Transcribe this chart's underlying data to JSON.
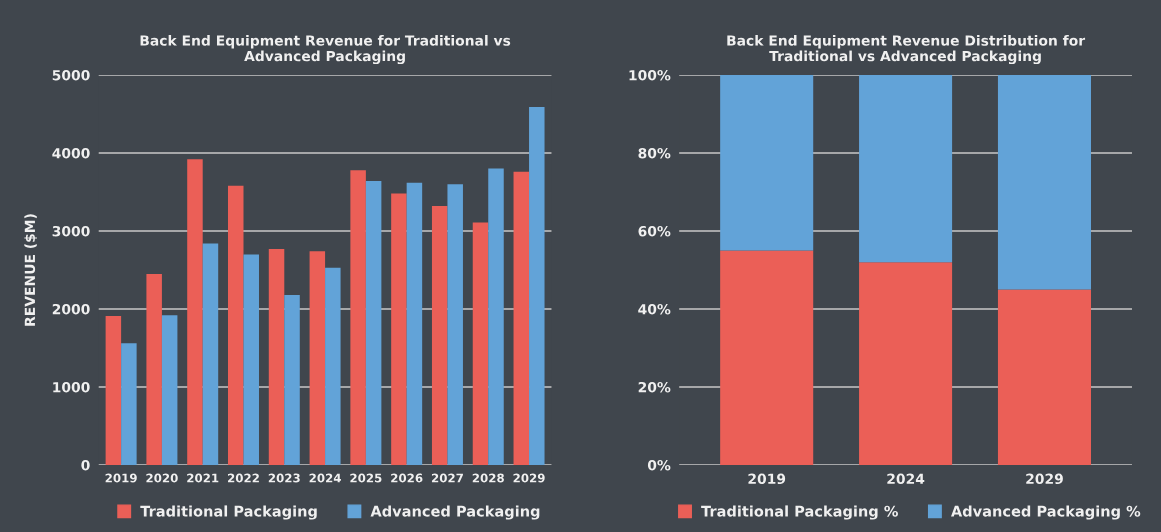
{
  "chart_data": [
    {
      "type": "bar",
      "title": "Back End Equipment Revenue for Traditional vs\nAdvanced Packaging",
      "ylabel": "REVENUE ($M)",
      "categories": [
        "2019",
        "2020",
        "2021",
        "2022",
        "2023",
        "2024",
        "2025",
        "2026",
        "2027",
        "2028",
        "2029"
      ],
      "series": [
        {
          "name": "Traditional Packaging",
          "color": "#eb5f57",
          "values": [
            1910,
            2450,
            3920,
            3580,
            2770,
            2740,
            3780,
            3480,
            3320,
            3110,
            3760
          ]
        },
        {
          "name": "Advanced Packaging",
          "color": "#62a3d8",
          "values": [
            1560,
            1920,
            2840,
            2700,
            2180,
            2530,
            3640,
            3620,
            3600,
            3800,
            4590
          ]
        }
      ],
      "ylim": [
        0,
        5000
      ],
      "yticks": [
        0,
        1000,
        2000,
        3000,
        4000,
        5000
      ],
      "grid": "y",
      "legend": "bottom",
      "marker": "square"
    },
    {
      "type": "bar",
      "title": "Back End Equipment Revenue Distribution for\nTraditional vs Advanced Packaging",
      "stacked": true,
      "categories": [
        "2019",
        "2024",
        "2029"
      ],
      "series": [
        {
          "name": "Traditional Packaging %",
          "color": "#eb5f57",
          "values": [
            55,
            52,
            45
          ]
        },
        {
          "name": "Advanced Packaging %",
          "color": "#62a3d8",
          "values": [
            45,
            48,
            55
          ]
        }
      ],
      "ylim": [
        0,
        100
      ],
      "yticks": [
        {
          "value": 0,
          "label": "0%"
        },
        {
          "value": 20,
          "label": "20%"
        },
        {
          "value": 40,
          "label": "40%"
        },
        {
          "value": 60,
          "label": "60%"
        },
        {
          "value": 80,
          "label": "80%"
        },
        {
          "value": 100,
          "label": "100%"
        }
      ],
      "grid": "y",
      "legend": "bottom",
      "marker": "square"
    }
  ]
}
